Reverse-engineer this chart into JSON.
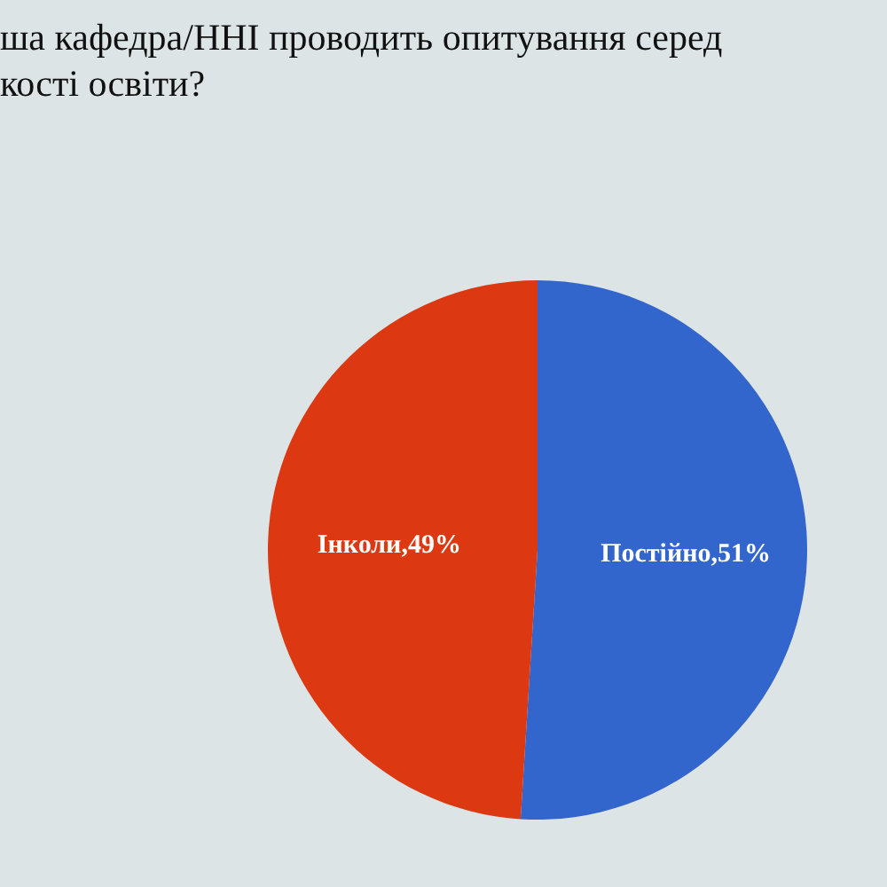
{
  "chart_data": {
    "type": "pie",
    "title": "ша кафедра/ННІ проводить опитування серед\nкості освіти?",
    "categories": [
      "Постійно",
      "Інколи"
    ],
    "values": [
      51,
      49
    ],
    "colors": [
      "#3366cc",
      "#dc3912"
    ],
    "value_labels": [
      "51%",
      "49%"
    ]
  }
}
